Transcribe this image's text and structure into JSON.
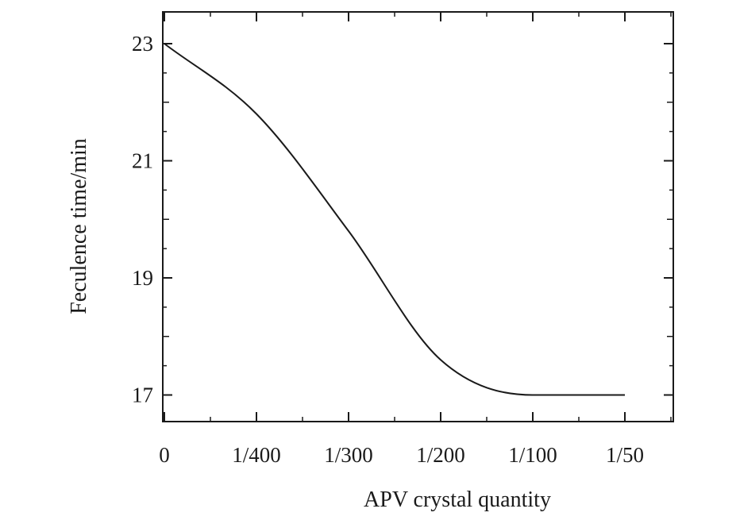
{
  "chart_data": {
    "type": "line",
    "title": "",
    "xlabel": "APV crystal quantity",
    "ylabel": "Feculence time/min",
    "categories": [
      "0",
      "1/400",
      "1/300",
      "1/200",
      "1/100",
      "1/50"
    ],
    "series": [
      {
        "values": [
          23.0,
          21.8,
          19.8,
          17.6,
          17.0,
          17.0
        ]
      }
    ],
    "ylim": [
      16.5,
      23.5
    ],
    "yticks": [
      17,
      19,
      21,
      23
    ],
    "grid": false,
    "colors": {
      "line": "#1a1a1a",
      "axis": "#1a1a1a",
      "background": "#ffffff"
    }
  }
}
